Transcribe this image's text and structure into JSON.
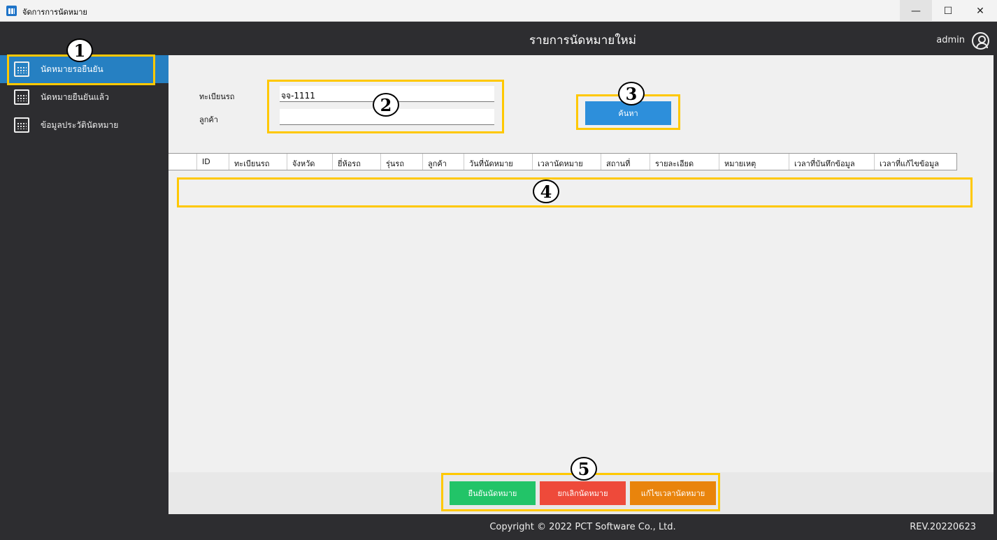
{
  "window": {
    "title": "จัดการการนัดหมาย",
    "minimize": "—",
    "maximize": "☐",
    "close": "✕"
  },
  "header": {
    "title": "รายการนัดหมายใหม่",
    "user": "admin"
  },
  "sidebar": {
    "items": [
      {
        "label": "นัดหมายรอยืนยัน",
        "icon": "calendar-edit-icon",
        "active": true
      },
      {
        "label": "นัดหมายยืนยันแล้ว",
        "icon": "calendar-check-icon"
      },
      {
        "label": "ข้อมูลประวัตินัดหมาย",
        "icon": "calendar-clock-icon"
      }
    ]
  },
  "form": {
    "plate_label": "ทะเบียนรถ",
    "plate_value": "จจ-1111",
    "customer_label": "ลูกค้า",
    "customer_value": "",
    "search_label": "ค้นหา"
  },
  "table": {
    "columns": [
      "",
      "ID",
      "ทะเบียนรถ",
      "จังหวัด",
      "ยี่ห้อรถ",
      "รุ่นรถ",
      "ลูกค้า",
      "วันที่นัดหมาย",
      "เวลานัดหมาย",
      "สถานที่",
      "รายละเอียด",
      "หมายเหตุ",
      "เวลาที่บันทึกข้อมูล",
      "เวลาที่แก้ไขข้อมูล"
    ],
    "rows": []
  },
  "actions": {
    "confirm": "ยืนยันนัดหมาย",
    "cancel": "ยกเลิกนัดหมาย",
    "reschedule": "แก้ไขเวลานัดหมาย",
    "colors": {
      "confirm": "#22c468",
      "cancel": "#ee4a3a",
      "reschedule": "#e9840c"
    }
  },
  "footer": {
    "copyright": "Copyright © 2022 PCT Software Co., Ltd.",
    "revision": "REV.20220623"
  },
  "annotations": [
    "1",
    "2",
    "3",
    "4",
    "5"
  ]
}
